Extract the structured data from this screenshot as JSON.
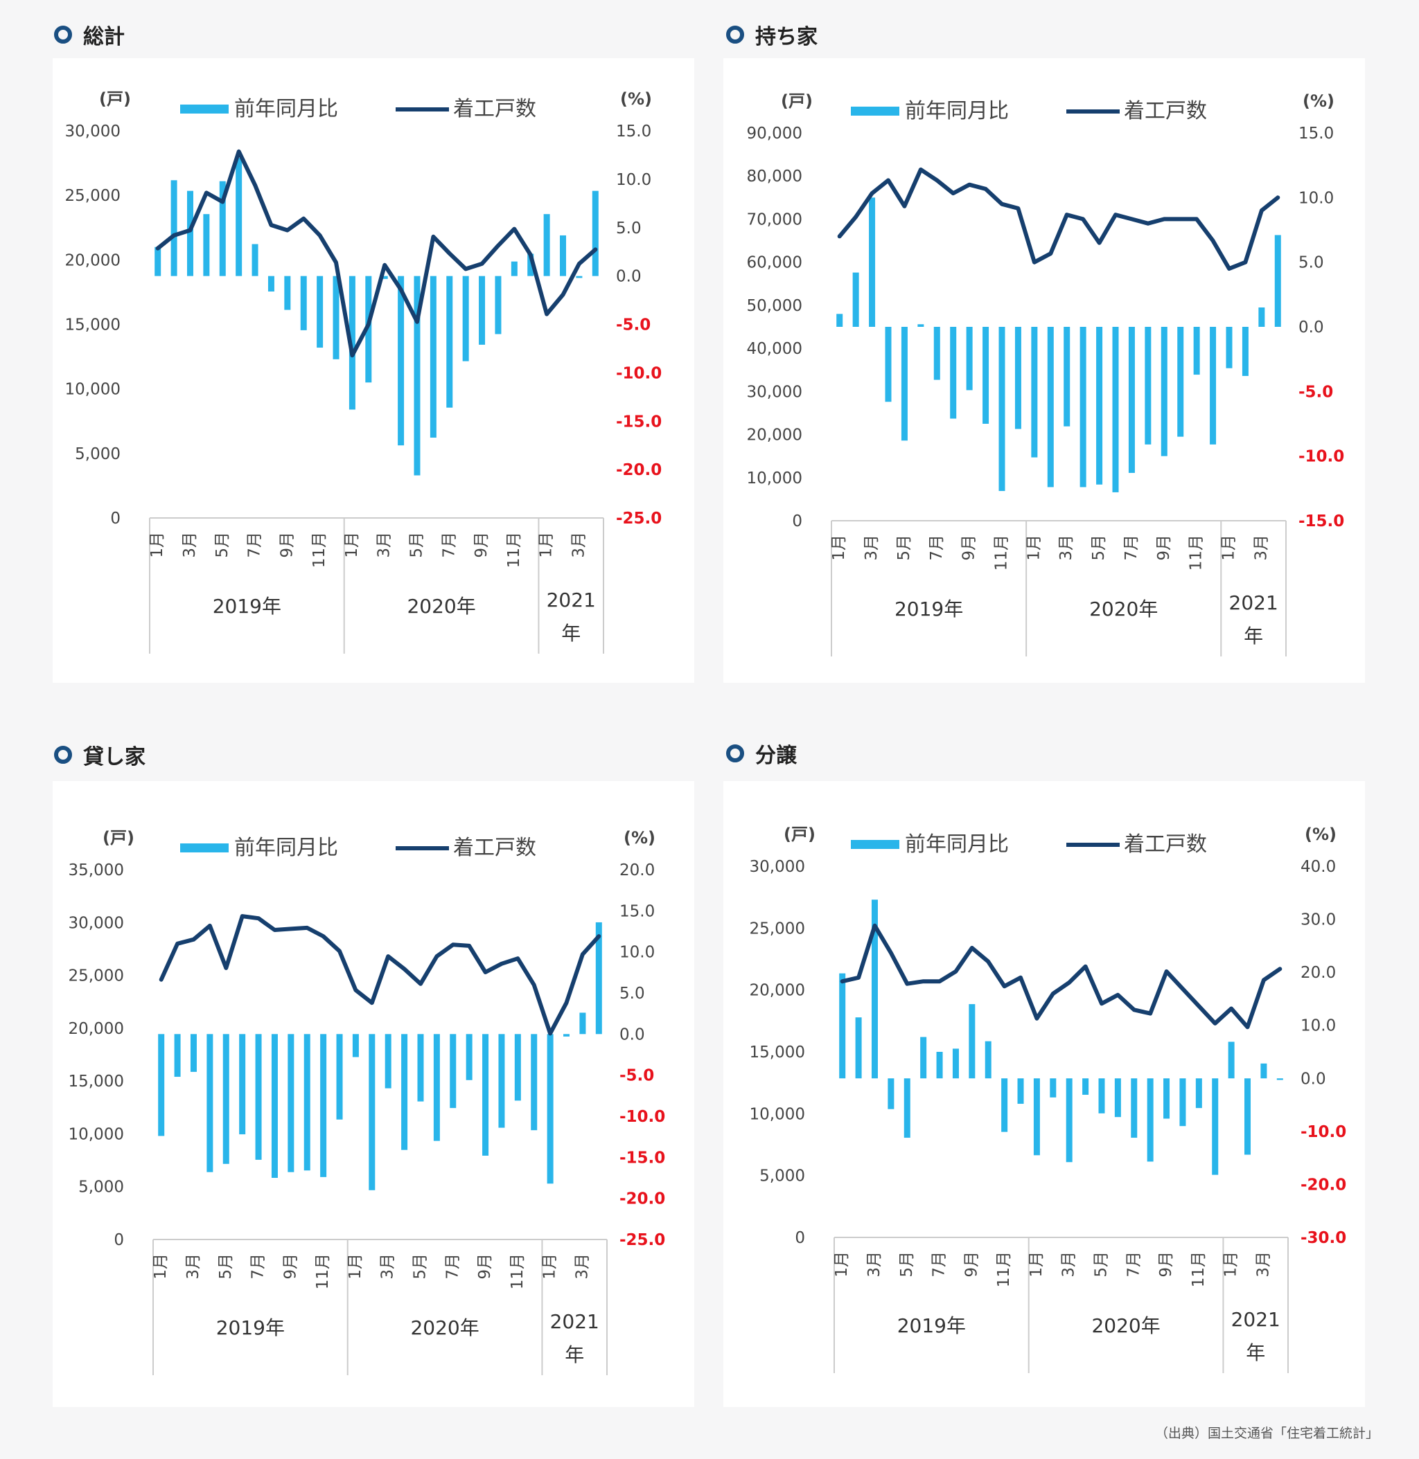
{
  "colors": {
    "bar": "#29b5ea",
    "line": "#163f6e",
    "negative": "#e8121c",
    "axis": "#444444",
    "frame": "#cccccc"
  },
  "source": "（出典）国土交通省「住宅着工統計」",
  "chart_data": [
    {
      "title": "総計",
      "type": "bar+line",
      "legend_bar": "前年同月比",
      "legend_line": "着工戸数",
      "ylabel_left": "(戸)",
      "ylabel_right": "(%)",
      "ylim_left": [
        0,
        30000
      ],
      "yticks_left": [
        "0",
        "5,000",
        "10,000",
        "15,000",
        "20,000",
        "25,000",
        "30,000"
      ],
      "ylim_right": [
        -25,
        15
      ],
      "yticks_right": [
        "-25.0",
        "-20.0",
        "-15.0",
        "-10.0",
        "-5.0",
        "0.0",
        "5.0",
        "10.0",
        "15.0"
      ],
      "categories": [
        "1月",
        "2月",
        "3月",
        "4月",
        "5月",
        "6月",
        "7月",
        "8月",
        "9月",
        "10月",
        "11月",
        "12月",
        "1月",
        "2月",
        "3月",
        "4月",
        "5月",
        "6月",
        "7月",
        "8月",
        "9月",
        "10月",
        "11月",
        "12月",
        "1月",
        "2月",
        "3月",
        "4月"
      ],
      "tick_labels": [
        "1月",
        "3月",
        "5月",
        "7月",
        "9月",
        "11月",
        "1月",
        "3月",
        "5月",
        "7月",
        "9月",
        "11月",
        "1月",
        "3月"
      ],
      "year_labels": [
        "2019年",
        "2020年",
        "2021年"
      ],
      "bar_values": [
        3.0,
        9.9,
        8.8,
        6.4,
        9.8,
        12.2,
        3.3,
        -1.6,
        -3.5,
        -5.6,
        -7.4,
        -8.6,
        -13.8,
        -11.0,
        -0.3,
        -17.5,
        -20.6,
        -16.7,
        -13.6,
        -8.8,
        -7.1,
        -6.0,
        1.5,
        2.3,
        6.4,
        4.2,
        -0.2,
        8.8
      ],
      "line_values": [
        20900,
        21900,
        22300,
        25200,
        24500,
        28400,
        25800,
        22700,
        22300,
        23200,
        21900,
        19800,
        12600,
        15000,
        19600,
        17700,
        15200,
        21800,
        20500,
        19300,
        19700,
        21100,
        22400,
        20400,
        15800,
        17300,
        19700,
        20800
      ]
    },
    {
      "title": "持ち家",
      "type": "bar+line",
      "legend_bar": "前年同月比",
      "legend_line": "着工戸数",
      "ylabel_left": "(戸)",
      "ylabel_right": "(%)",
      "ylim_left": [
        0,
        90000
      ],
      "yticks_left": [
        "0",
        "10,000",
        "20,000",
        "30,000",
        "40,000",
        "50,000",
        "60,000",
        "70,000",
        "80,000",
        "90,000"
      ],
      "ylim_right": [
        -15,
        15
      ],
      "yticks_right": [
        "-15.0",
        "-10.0",
        "-5.0",
        "0.0",
        "5.0",
        "10.0",
        "15.0"
      ],
      "categories": [
        "1月",
        "2月",
        "3月",
        "4月",
        "5月",
        "6月",
        "7月",
        "8月",
        "9月",
        "10月",
        "11月",
        "12月",
        "1月",
        "2月",
        "3月",
        "4月",
        "5月",
        "6月",
        "7月",
        "8月",
        "9月",
        "10月",
        "11月",
        "12月",
        "1月",
        "2月",
        "3月",
        "4月"
      ],
      "tick_labels": [
        "1月",
        "3月",
        "5月",
        "7月",
        "9月",
        "11月",
        "1月",
        "3月",
        "5月",
        "7月",
        "9月",
        "11月",
        "1月",
        "3月"
      ],
      "year_labels": [
        "2019年",
        "2020年",
        "2021年"
      ],
      "bar_values": [
        1.0,
        4.2,
        10.0,
        -5.8,
        -8.8,
        0.2,
        -4.1,
        -7.1,
        -4.9,
        -7.5,
        -12.7,
        -7.9,
        -10.1,
        -12.4,
        -7.7,
        -12.4,
        -12.2,
        -12.8,
        -11.3,
        -9.1,
        -10.0,
        -8.5,
        -3.7,
        -9.1,
        -3.2,
        -3.8,
        1.5,
        7.1
      ],
      "line_values": [
        66000,
        70500,
        76000,
        79000,
        73000,
        81500,
        79000,
        76000,
        78000,
        77000,
        73500,
        72500,
        60000,
        62000,
        71000,
        70000,
        64500,
        71000,
        70000,
        69000,
        70000,
        70000,
        70000,
        65000,
        58500,
        60000,
        72000,
        75000
      ]
    },
    {
      "title": "貸し家",
      "type": "bar+line",
      "legend_bar": "前年同月比",
      "legend_line": "着工戸数",
      "ylabel_left": "(戸)",
      "ylabel_right": "(%)",
      "ylim_left": [
        0,
        35000
      ],
      "yticks_left": [
        "0",
        "5,000",
        "10,000",
        "15,000",
        "20,000",
        "25,000",
        "30,000",
        "35,000"
      ],
      "ylim_right": [
        -25,
        20
      ],
      "yticks_right": [
        "-25.0",
        "-20.0",
        "-15.0",
        "-10.0",
        "-5.0",
        "0.0",
        "5.0",
        "10.0",
        "15.0",
        "20.0"
      ],
      "categories": [
        "1月",
        "2月",
        "3月",
        "4月",
        "5月",
        "6月",
        "7月",
        "8月",
        "9月",
        "10月",
        "11月",
        "12月",
        "1月",
        "2月",
        "3月",
        "4月",
        "5月",
        "6月",
        "7月",
        "8月",
        "9月",
        "10月",
        "11月",
        "12月",
        "1月",
        "2月",
        "3月",
        "4月"
      ],
      "tick_labels": [
        "1月",
        "3月",
        "5月",
        "7月",
        "9月",
        "11月",
        "1月",
        "3月",
        "5月",
        "7月",
        "9月",
        "11月",
        "1月",
        "3月"
      ],
      "year_labels": [
        "2019年",
        "2020年",
        "2021年"
      ],
      "bar_values": [
        -12.4,
        -5.2,
        -4.6,
        -16.8,
        -15.8,
        -12.2,
        -15.3,
        -17.5,
        -16.8,
        -16.6,
        -17.4,
        -10.4,
        -2.8,
        -19.0,
        -6.6,
        -14.1,
        -8.2,
        -13.0,
        -9.0,
        -5.6,
        -14.8,
        -11.4,
        -8.1,
        -11.7,
        -18.2,
        -0.3,
        2.6,
        13.6
      ],
      "line_values": [
        24600,
        28000,
        28400,
        29700,
        25700,
        30600,
        30400,
        29300,
        29400,
        29500,
        28700,
        27300,
        23600,
        22400,
        26800,
        25600,
        24200,
        26800,
        27900,
        27800,
        25300,
        26100,
        26600,
        24100,
        19500,
        22400,
        27000,
        28700
      ]
    },
    {
      "title": "分譲",
      "type": "bar+line",
      "legend_bar": "前年同月比",
      "legend_line": "着工戸数",
      "ylabel_left": "(戸)",
      "ylabel_right": "(%)",
      "ylim_left": [
        0,
        30000
      ],
      "yticks_left": [
        "0",
        "5,000",
        "10,000",
        "15,000",
        "20,000",
        "25,000",
        "30,000"
      ],
      "ylim_right": [
        -30,
        40
      ],
      "yticks_right": [
        "-30.0",
        "-20.0",
        "-10.0",
        "0.0",
        "10.0",
        "20.0",
        "30.0",
        "40.0"
      ],
      "categories": [
        "1月",
        "2月",
        "3月",
        "4月",
        "5月",
        "6月",
        "7月",
        "8月",
        "9月",
        "10月",
        "11月",
        "12月",
        "1月",
        "2月",
        "3月",
        "4月",
        "5月",
        "6月",
        "7月",
        "8月",
        "9月",
        "10月",
        "11月",
        "12月",
        "1月",
        "2月",
        "3月",
        "4月"
      ],
      "tick_labels": [
        "1月",
        "3月",
        "5月",
        "7月",
        "9月",
        "11月",
        "1月",
        "3月",
        "5月",
        "7月",
        "9月",
        "11月",
        "1月",
        "3月"
      ],
      "year_labels": [
        "2019年",
        "2020年",
        "2021年"
      ],
      "bar_values": [
        19.8,
        11.5,
        33.7,
        -5.8,
        -11.2,
        7.8,
        5.0,
        5.6,
        14.0,
        7.0,
        -10.1,
        -4.8,
        -14.5,
        -3.6,
        -15.8,
        -3.1,
        -6.6,
        -7.3,
        -11.2,
        -15.7,
        -7.6,
        -9.0,
        -5.6,
        -18.2,
        6.9,
        -14.4,
        2.8,
        -0.3
      ],
      "line_values": [
        20700,
        21000,
        25200,
        23000,
        20500,
        20700,
        20700,
        21500,
        23400,
        22300,
        20300,
        21000,
        17700,
        19700,
        20600,
        21900,
        18900,
        19600,
        18400,
        18100,
        21500,
        20100,
        18700,
        17300,
        18500,
        17000,
        20800,
        21700
      ]
    }
  ]
}
